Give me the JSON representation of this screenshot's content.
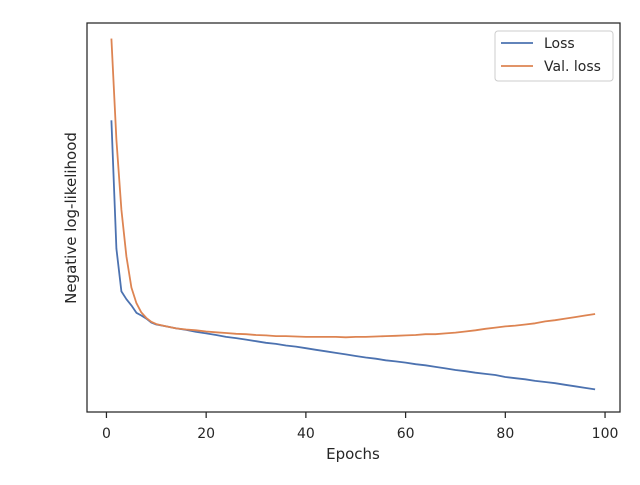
{
  "chart_data": {
    "type": "line",
    "title": "",
    "xlabel": "Epochs",
    "ylabel": "Negative log-likelihood",
    "xlim": [
      -3.9,
      103
    ],
    "ylim": [
      0,
      1
    ],
    "xticks": [
      0,
      20,
      40,
      60,
      80,
      100
    ],
    "yticks_shown": false,
    "grid": false,
    "legend": "top-right",
    "series": [
      {
        "name": "Loss",
        "color": "#4c72b0",
        "x": [
          1,
          2,
          3,
          4,
          5,
          6,
          7,
          8,
          9,
          10,
          12,
          14,
          16,
          18,
          20,
          22,
          24,
          26,
          28,
          30,
          32,
          34,
          36,
          38,
          40,
          42,
          44,
          46,
          48,
          50,
          52,
          54,
          56,
          58,
          60,
          62,
          64,
          66,
          68,
          70,
          72,
          74,
          76,
          78,
          80,
          82,
          84,
          86,
          88,
          90,
          92,
          94,
          96,
          98
        ],
        "values": [
          0.75,
          0.42,
          0.31,
          0.29,
          0.274,
          0.255,
          0.248,
          0.24,
          0.23,
          0.225,
          0.22,
          0.215,
          0.211,
          0.206,
          0.202,
          0.198,
          0.193,
          0.19,
          0.186,
          0.182,
          0.178,
          0.175,
          0.171,
          0.168,
          0.164,
          0.16,
          0.156,
          0.152,
          0.148,
          0.144,
          0.14,
          0.137,
          0.133,
          0.13,
          0.127,
          0.123,
          0.12,
          0.116,
          0.112,
          0.108,
          0.105,
          0.101,
          0.098,
          0.095,
          0.09,
          0.087,
          0.084,
          0.08,
          0.077,
          0.074,
          0.07,
          0.066,
          0.062,
          0.058
        ]
      },
      {
        "name": "Val. loss",
        "color": "#dd8452",
        "x": [
          1,
          2,
          3,
          4,
          5,
          6,
          7,
          8,
          9,
          10,
          12,
          14,
          16,
          18,
          20,
          22,
          24,
          26,
          28,
          30,
          32,
          34,
          36,
          38,
          40,
          42,
          44,
          46,
          48,
          50,
          52,
          54,
          56,
          58,
          60,
          62,
          64,
          66,
          68,
          70,
          72,
          74,
          76,
          78,
          80,
          82,
          84,
          86,
          88,
          90,
          92,
          94,
          96,
          98
        ],
        "values": [
          0.96,
          0.7,
          0.52,
          0.4,
          0.32,
          0.28,
          0.256,
          0.242,
          0.232,
          0.226,
          0.22,
          0.215,
          0.212,
          0.21,
          0.207,
          0.205,
          0.203,
          0.201,
          0.2,
          0.198,
          0.197,
          0.195,
          0.195,
          0.194,
          0.193,
          0.193,
          0.193,
          0.193,
          0.192,
          0.193,
          0.193,
          0.194,
          0.195,
          0.196,
          0.197,
          0.198,
          0.2,
          0.2,
          0.202,
          0.204,
          0.207,
          0.21,
          0.214,
          0.217,
          0.22,
          0.222,
          0.225,
          0.228,
          0.233,
          0.236,
          0.24,
          0.244,
          0.248,
          0.252
        ]
      }
    ]
  }
}
